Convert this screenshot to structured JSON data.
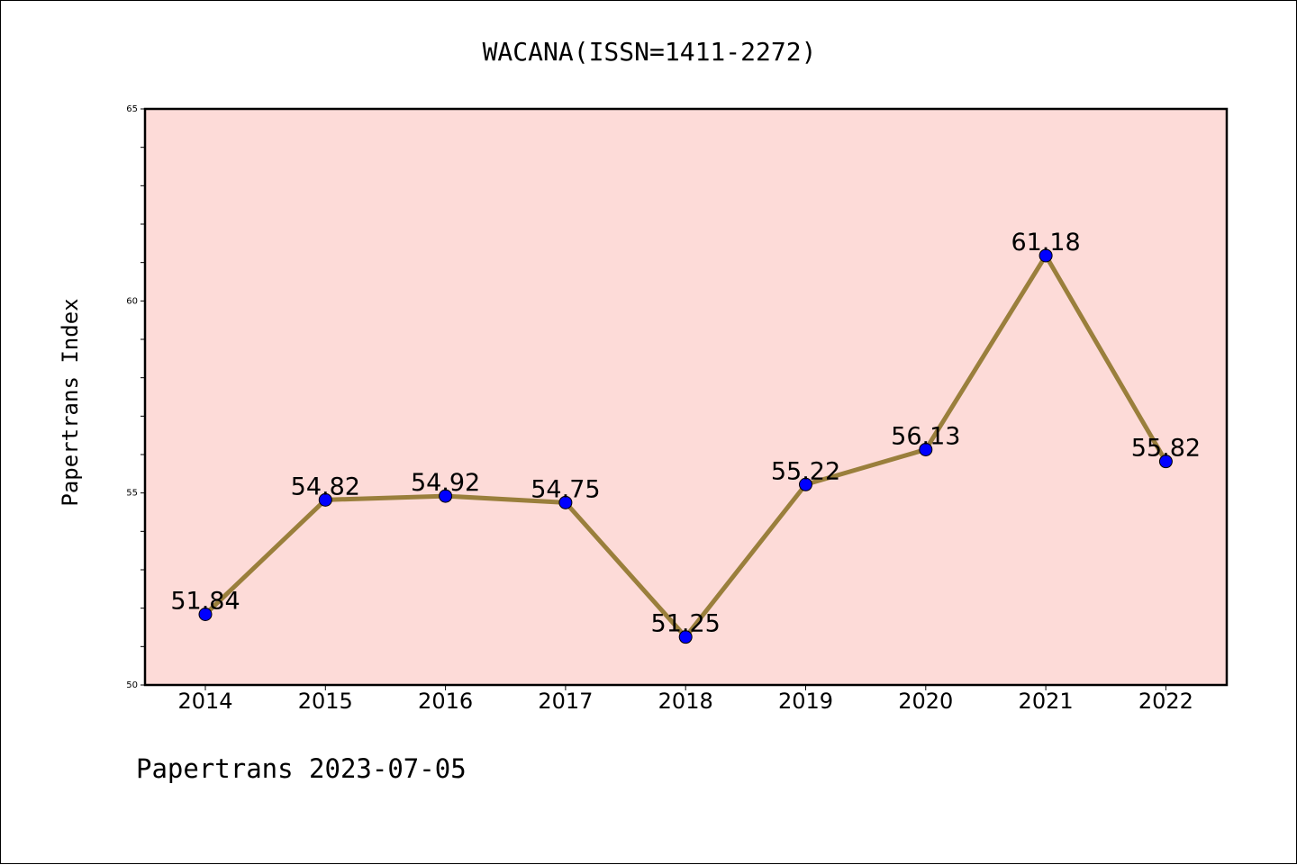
{
  "chart_data": {
    "type": "line",
    "title": "WACANA(ISSN=1411-2272)",
    "ylabel": "Papertrans Index",
    "xlabel": "",
    "footer": "Papertrans 2023-07-05",
    "categories": [
      "2014",
      "2015",
      "2016",
      "2017",
      "2018",
      "2019",
      "2020",
      "2021",
      "2022"
    ],
    "values": [
      51.84,
      54.82,
      54.92,
      54.75,
      51.25,
      55.22,
      56.13,
      61.18,
      55.82
    ],
    "data_labels": [
      "51.84",
      "54.82",
      "54.92",
      "54.75",
      "51.25",
      "55.22",
      "56.13",
      "61.18",
      "55.82"
    ],
    "ylim": [
      50,
      65
    ],
    "yticks": [
      "50",
      "55",
      "60",
      "65"
    ],
    "grid": false,
    "colors": {
      "plot_background": "#fddbd8",
      "line": "#9a7f3c",
      "marker": "#0000ff",
      "axes": "#000000"
    }
  }
}
